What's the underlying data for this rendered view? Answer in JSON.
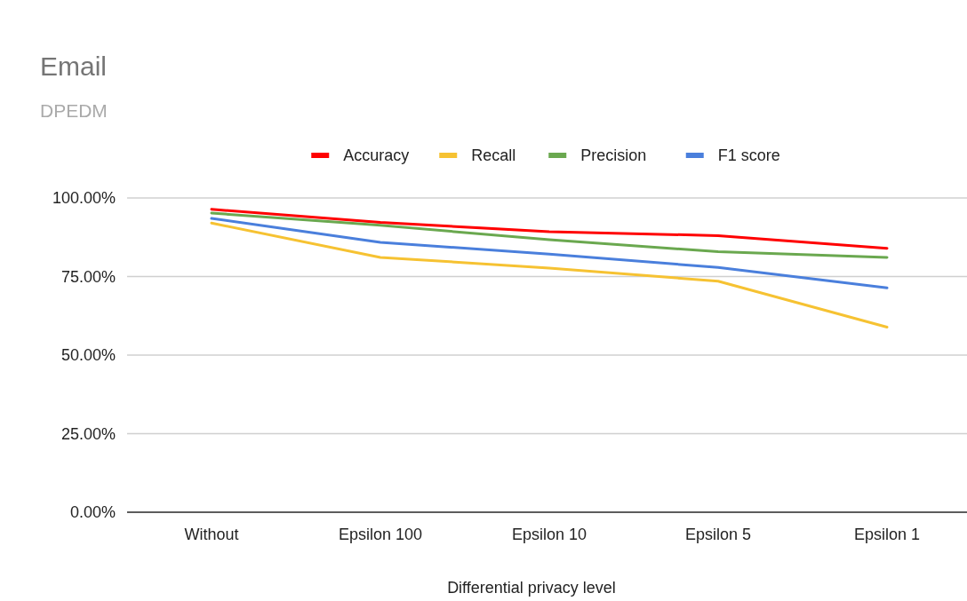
{
  "chart_data": {
    "type": "line",
    "title": "Email",
    "subtitle": "DPEDM",
    "xlabel": "Differential privacy level",
    "categories": [
      "Without",
      "Epsilon 100",
      "Epsilon 10",
      "Epsilon 5",
      "Epsilon 1"
    ],
    "series": [
      {
        "name": "Accuracy",
        "color": "#ff0000",
        "values": [
          96.4,
          92.2,
          89.3,
          88.0,
          84.0
        ]
      },
      {
        "name": "Recall",
        "color": "#f6c232",
        "values": [
          92.0,
          81.1,
          77.7,
          73.5,
          58.9
        ]
      },
      {
        "name": "Precision",
        "color": "#6aa84f",
        "values": [
          95.2,
          91.3,
          86.7,
          82.9,
          81.1
        ]
      },
      {
        "name": "F1 score",
        "color": "#4a7fdc",
        "values": [
          93.5,
          85.9,
          82.1,
          77.9,
          71.4
        ]
      }
    ],
    "ylim": [
      0,
      100
    ],
    "yticks": [
      {
        "value": 0,
        "label": "0.00%"
      },
      {
        "value": 25,
        "label": "25.00%"
      },
      {
        "value": 50,
        "label": "50.00%"
      },
      {
        "value": 75,
        "label": "75.00%"
      },
      {
        "value": 100,
        "label": "100.00%"
      }
    ],
    "grid": "y",
    "legend": "top",
    "marker": "none",
    "line_style": "solid"
  }
}
